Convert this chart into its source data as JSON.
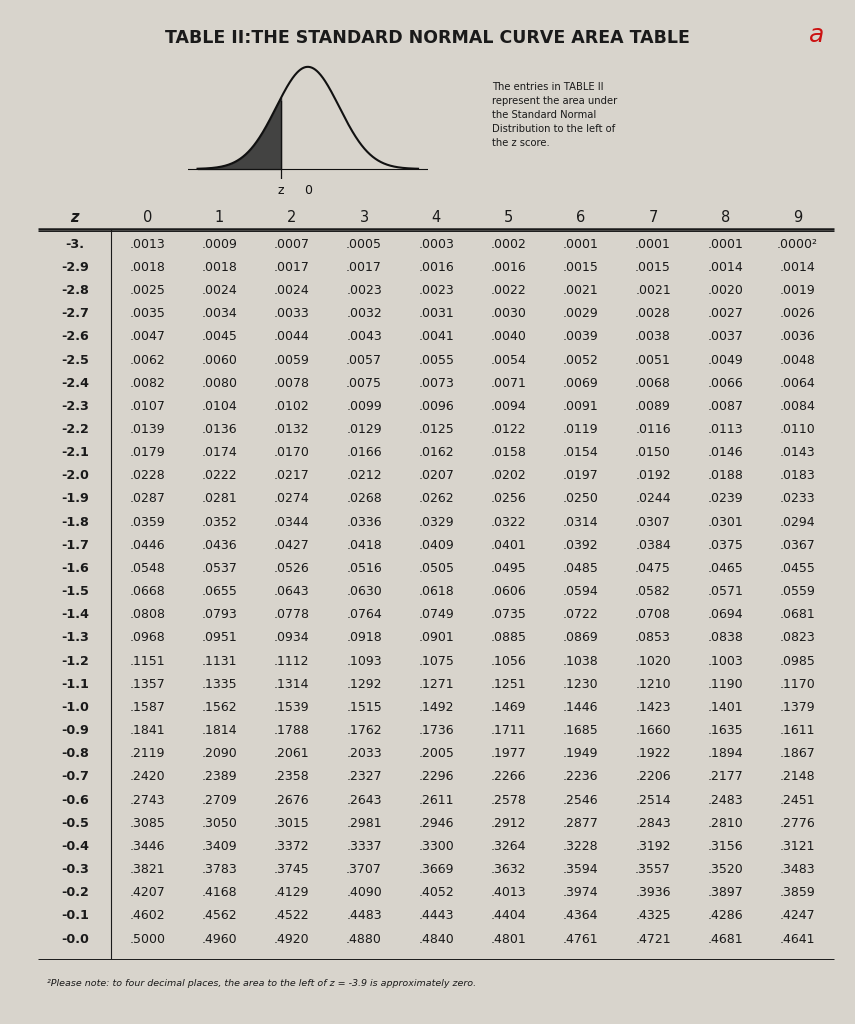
{
  "title": "TABLE II:THE STANDARD NORMAL CURVE AREA TABLE",
  "background_color": "#d8d4cc",
  "text_color": "#1a1a1a",
  "col_headers": [
    "z",
    "0",
    "1",
    "2",
    "3",
    "4",
    "5",
    "6",
    "7",
    "8",
    "9"
  ],
  "footnote": "²Please note: to four decimal places, the area to the left of z = -3.9 is approximately zero.",
  "annotation_text": "The entries in TABLE II\nrepresent the area under\nthe Standard Normal\nDistribution to the left of\nthe z score.",
  "red_annotation": "a",
  "rows": [
    [
      "-3.",
      ".0013",
      ".0009",
      ".0007",
      ".0005",
      ".0003",
      ".0002",
      ".0001",
      ".0001",
      ".0001",
      ".0000²"
    ],
    [
      "-2.9",
      ".0018",
      ".0018",
      ".0017",
      ".0017",
      ".0016",
      ".0016",
      ".0015",
      ".0015",
      ".0014",
      ".0014"
    ],
    [
      "-2.8",
      ".0025",
      ".0024",
      ".0024",
      ".0023",
      ".0023",
      ".0022",
      ".0021",
      ".0021",
      ".0020",
      ".0019"
    ],
    [
      "-2.7",
      ".0035",
      ".0034",
      ".0033",
      ".0032",
      ".0031",
      ".0030",
      ".0029",
      ".0028",
      ".0027",
      ".0026"
    ],
    [
      "-2.6",
      ".0047",
      ".0045",
      ".0044",
      ".0043",
      ".0041",
      ".0040",
      ".0039",
      ".0038",
      ".0037",
      ".0036"
    ],
    [
      "-2.5",
      ".0062",
      ".0060",
      ".0059",
      ".0057",
      ".0055",
      ".0054",
      ".0052",
      ".0051",
      ".0049",
      ".0048"
    ],
    [
      "-2.4",
      ".0082",
      ".0080",
      ".0078",
      ".0075",
      ".0073",
      ".0071",
      ".0069",
      ".0068",
      ".0066",
      ".0064"
    ],
    [
      "-2.3",
      ".0107",
      ".0104",
      ".0102",
      ".0099",
      ".0096",
      ".0094",
      ".0091",
      ".0089",
      ".0087",
      ".0084"
    ],
    [
      "-2.2",
      ".0139",
      ".0136",
      ".0132",
      ".0129",
      ".0125",
      ".0122",
      ".0119",
      ".0116",
      ".0113",
      ".0110"
    ],
    [
      "-2.1",
      ".0179",
      ".0174",
      ".0170",
      ".0166",
      ".0162",
      ".0158",
      ".0154",
      ".0150",
      ".0146",
      ".0143"
    ],
    [
      "-2.0",
      ".0228",
      ".0222",
      ".0217",
      ".0212",
      ".0207",
      ".0202",
      ".0197",
      ".0192",
      ".0188",
      ".0183"
    ],
    [
      "-1.9",
      ".0287",
      ".0281",
      ".0274",
      ".0268",
      ".0262",
      ".0256",
      ".0250",
      ".0244",
      ".0239",
      ".0233"
    ],
    [
      "-1.8",
      ".0359",
      ".0352",
      ".0344",
      ".0336",
      ".0329",
      ".0322",
      ".0314",
      ".0307",
      ".0301",
      ".0294"
    ],
    [
      "-1.7",
      ".0446",
      ".0436",
      ".0427",
      ".0418",
      ".0409",
      ".0401",
      ".0392",
      ".0384",
      ".0375",
      ".0367"
    ],
    [
      "-1.6",
      ".0548",
      ".0537",
      ".0526",
      ".0516",
      ".0505",
      ".0495",
      ".0485",
      ".0475",
      ".0465",
      ".0455"
    ],
    [
      "-1.5",
      ".0668",
      ".0655",
      ".0643",
      ".0630",
      ".0618",
      ".0606",
      ".0594",
      ".0582",
      ".0571",
      ".0559"
    ],
    [
      "-1.4",
      ".0808",
      ".0793",
      ".0778",
      ".0764",
      ".0749",
      ".0735",
      ".0722",
      ".0708",
      ".0694",
      ".0681"
    ],
    [
      "-1.3",
      ".0968",
      ".0951",
      ".0934",
      ".0918",
      ".0901",
      ".0885",
      ".0869",
      ".0853",
      ".0838",
      ".0823"
    ],
    [
      "-1.2",
      ".1151",
      ".1131",
      ".1112",
      ".1093",
      ".1075",
      ".1056",
      ".1038",
      ".1020",
      ".1003",
      ".0985"
    ],
    [
      "-1.1",
      ".1357",
      ".1335",
      ".1314",
      ".1292",
      ".1271",
      ".1251",
      ".1230",
      ".1210",
      ".1190",
      ".1170"
    ],
    [
      "-1.0",
      ".1587",
      ".1562",
      ".1539",
      ".1515",
      ".1492",
      ".1469",
      ".1446",
      ".1423",
      ".1401",
      ".1379"
    ],
    [
      "-0.9",
      ".1841",
      ".1814",
      ".1788",
      ".1762",
      ".1736",
      ".1711",
      ".1685",
      ".1660",
      ".1635",
      ".1611"
    ],
    [
      "-0.8",
      ".2119",
      ".2090",
      ".2061",
      ".2033",
      ".2005",
      ".1977",
      ".1949",
      ".1922",
      ".1894",
      ".1867"
    ],
    [
      "-0.7",
      ".2420",
      ".2389",
      ".2358",
      ".2327",
      ".2296",
      ".2266",
      ".2236",
      ".2206",
      ".2177",
      ".2148"
    ],
    [
      "-0.6",
      ".2743",
      ".2709",
      ".2676",
      ".2643",
      ".2611",
      ".2578",
      ".2546",
      ".2514",
      ".2483",
      ".2451"
    ],
    [
      "-0.5",
      ".3085",
      ".3050",
      ".3015",
      ".2981",
      ".2946",
      ".2912",
      ".2877",
      ".2843",
      ".2810",
      ".2776"
    ],
    [
      "-0.4",
      ".3446",
      ".3409",
      ".3372",
      ".3337",
      ".3300",
      ".3264",
      ".3228",
      ".3192",
      ".3156",
      ".3121"
    ],
    [
      "-0.3",
      ".3821",
      ".3783",
      ".3745",
      ".3707",
      ".3669",
      ".3632",
      ".3594",
      ".3557",
      ".3520",
      ".3483"
    ],
    [
      "-0.2",
      ".4207",
      ".4168",
      ".4129",
      ".4090",
      ".4052",
      ".4013",
      ".3974",
      ".3936",
      ".3897",
      ".3859"
    ],
    [
      "-0.1",
      ".4602",
      ".4562",
      ".4522",
      ".4483",
      ".4443",
      ".4404",
      ".4364",
      ".4325",
      ".4286",
      ".4247"
    ],
    [
      "-0.0",
      ".5000",
      ".4960",
      ".4920",
      ".4880",
      ".4840",
      ".4801",
      ".4761",
      ".4721",
      ".4681",
      ".4641"
    ]
  ]
}
